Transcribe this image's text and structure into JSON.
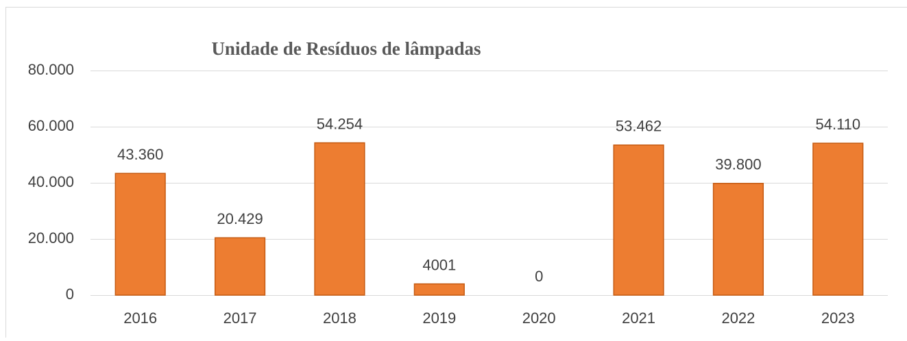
{
  "chart_data": {
    "type": "bar",
    "title": "Unidade de Resíduos de lâmpadas",
    "categories": [
      "2016",
      "2017",
      "2018",
      "2019",
      "2020",
      "2021",
      "2022",
      "2023"
    ],
    "values": [
      43360,
      20429,
      54254,
      4001,
      0,
      53462,
      39800,
      54110
    ],
    "value_labels": [
      "43.360",
      "20.429",
      "54.254",
      "4001",
      "0",
      "53.462",
      "39.800",
      "54.110"
    ],
    "color": "#ed7d31",
    "ylim": [
      0,
      80000
    ],
    "yticks": [
      0,
      {
        "value": 20000,
        "label": "20.000"
      },
      {
        "value": 40000,
        "label": "40.000"
      },
      {
        "value": 60000,
        "label": "60.000"
      },
      {
        "value": 80000,
        "label": "80.000"
      }
    ],
    "grid": true
  }
}
